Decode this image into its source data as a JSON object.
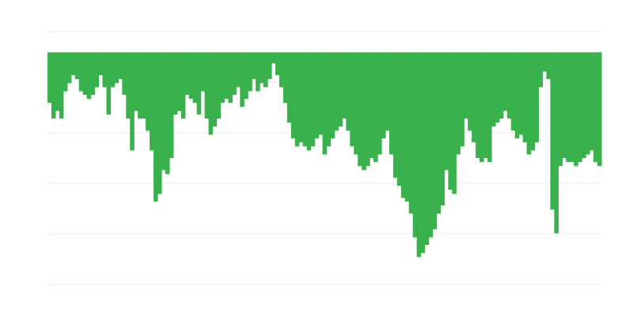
{
  "chart_data": {
    "type": "area",
    "title": "",
    "xlabel": "",
    "ylabel": "",
    "color": "#39b14c",
    "gridline_color": "#ebebeb",
    "grid": true,
    "baseline": 0,
    "ylim": [
      -4.59,
      0.41
    ],
    "gridlines": [
      0.41,
      -0.59,
      -1.59,
      -2.59,
      -3.59,
      -4.59
    ],
    "values": [
      -1.0,
      -1.31,
      -1.16,
      -1.31,
      -0.77,
      -0.61,
      -0.45,
      -0.53,
      -0.77,
      -0.84,
      -0.92,
      -0.84,
      -0.69,
      -0.45,
      -0.69,
      -1.23,
      -0.69,
      -0.61,
      -0.53,
      -0.84,
      -1.31,
      -1.94,
      -1.16,
      -1.31,
      -1.31,
      -1.55,
      -1.94,
      -2.95,
      -2.8,
      -2.33,
      -2.41,
      -2.09,
      -1.23,
      -1.16,
      -1.31,
      -0.84,
      -0.92,
      -1.0,
      -1.23,
      -0.77,
      -1.31,
      -1.63,
      -1.47,
      -1.31,
      -1.0,
      -0.92,
      -1.0,
      -0.84,
      -0.69,
      -1.08,
      -0.92,
      -0.77,
      -0.53,
      -0.77,
      -0.61,
      -0.69,
      -0.53,
      -0.22,
      -0.45,
      -0.69,
      -1.0,
      -1.39,
      -1.7,
      -1.86,
      -1.78,
      -1.86,
      -1.94,
      -1.86,
      -1.7,
      -1.63,
      -2.02,
      -1.86,
      -1.7,
      -1.55,
      -1.47,
      -1.31,
      -1.55,
      -1.86,
      -2.02,
      -2.25,
      -2.33,
      -2.25,
      -2.09,
      -2.17,
      -2.02,
      -1.7,
      -1.55,
      -2.02,
      -2.48,
      -2.64,
      -2.88,
      -2.95,
      -3.19,
      -3.66,
      -4.05,
      -3.97,
      -3.81,
      -3.66,
      -3.5,
      -3.19,
      -3.03,
      -2.33,
      -2.72,
      -2.8,
      -2.02,
      -1.86,
      -1.31,
      -1.55,
      -1.78,
      -2.09,
      -2.17,
      -2.09,
      -2.17,
      -1.47,
      -1.39,
      -1.31,
      -1.16,
      -1.31,
      -1.55,
      -1.7,
      -1.63,
      -1.78,
      -2.02,
      -1.94,
      -1.78,
      -0.69,
      -0.38,
      -0.53,
      -3.11,
      -3.58,
      -2.25,
      -2.09,
      -2.17,
      -2.17,
      -2.25,
      -2.17,
      -2.09,
      -2.02,
      -1.94,
      -2.17,
      -2.25
    ]
  }
}
